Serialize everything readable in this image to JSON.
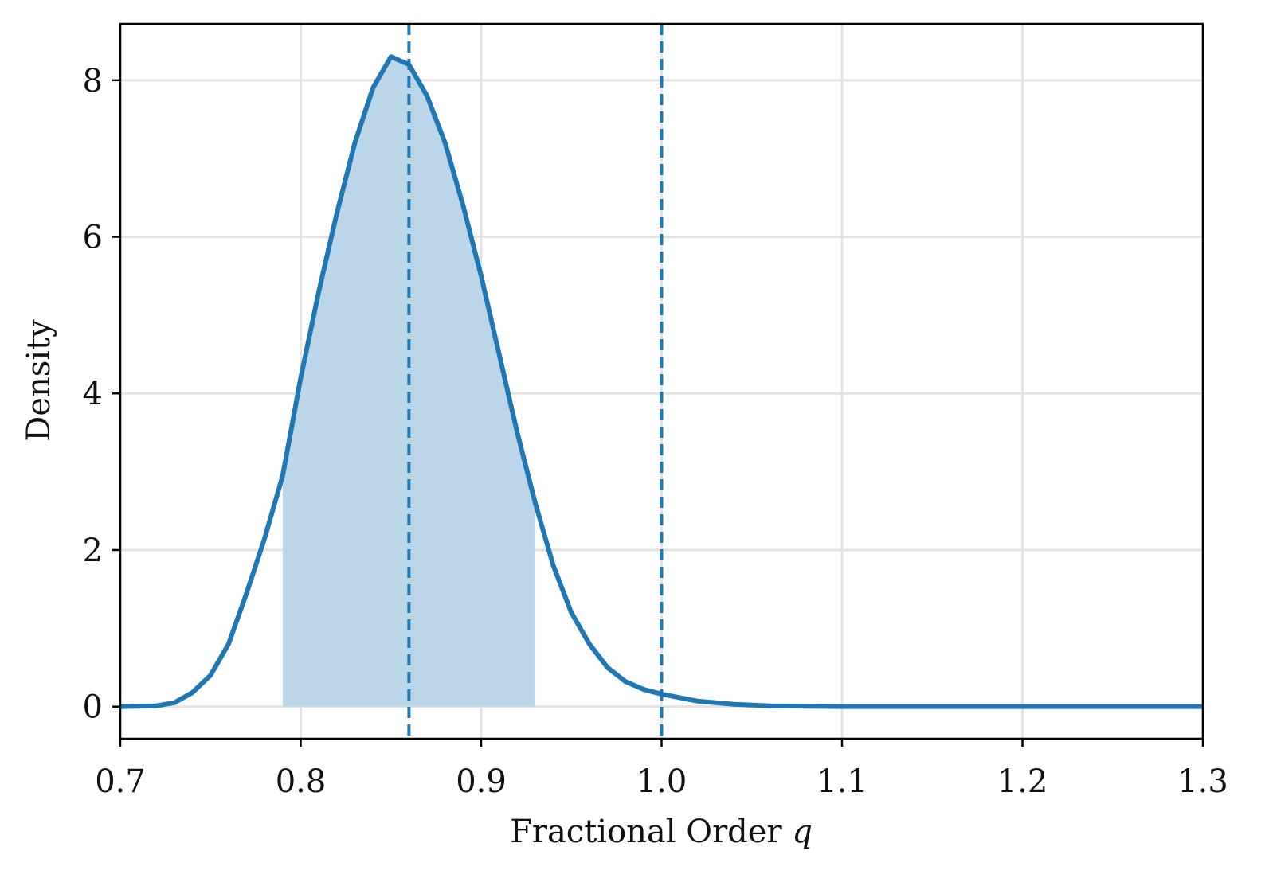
{
  "chart_data": {
    "type": "line",
    "xlabel": "Fractional Order",
    "xlabel_var": "q",
    "ylabel": "Density",
    "x": [
      0.7,
      0.72,
      0.73,
      0.74,
      0.75,
      0.76,
      0.77,
      0.78,
      0.79,
      0.8,
      0.81,
      0.82,
      0.83,
      0.84,
      0.85,
      0.86,
      0.87,
      0.88,
      0.89,
      0.9,
      0.91,
      0.92,
      0.93,
      0.94,
      0.95,
      0.96,
      0.97,
      0.98,
      0.99,
      1.0,
      1.02,
      1.04,
      1.06,
      1.1,
      1.3
    ],
    "series": [
      {
        "color": "#1f77b4",
        "values": [
          0,
          0.01,
          0.05,
          0.18,
          0.4,
          0.8,
          1.45,
          2.15,
          2.95,
          4.2,
          5.3,
          6.3,
          7.2,
          7.9,
          8.3,
          8.2,
          7.8,
          7.2,
          6.4,
          5.5,
          4.5,
          3.5,
          2.6,
          1.8,
          1.2,
          0.8,
          0.5,
          0.32,
          0.22,
          0.16,
          0.07,
          0.03,
          0.01,
          0,
          0
        ]
      }
    ],
    "interval": [
      0.79,
      0.93
    ],
    "interval_color": "#bbd6e9",
    "vlines": [
      0.86,
      1.0
    ],
    "xlim": [
      0.7,
      1.3
    ],
    "xticks": [
      0.7,
      0.8,
      0.9,
      {
        "value": 1.0,
        "label": "1.0"
      },
      1.1,
      1.2,
      1.3
    ],
    "ylim": [
      -0.41,
      8.72
    ],
    "yticks": [
      0,
      2,
      4,
      6,
      8
    ],
    "grid": true
  }
}
